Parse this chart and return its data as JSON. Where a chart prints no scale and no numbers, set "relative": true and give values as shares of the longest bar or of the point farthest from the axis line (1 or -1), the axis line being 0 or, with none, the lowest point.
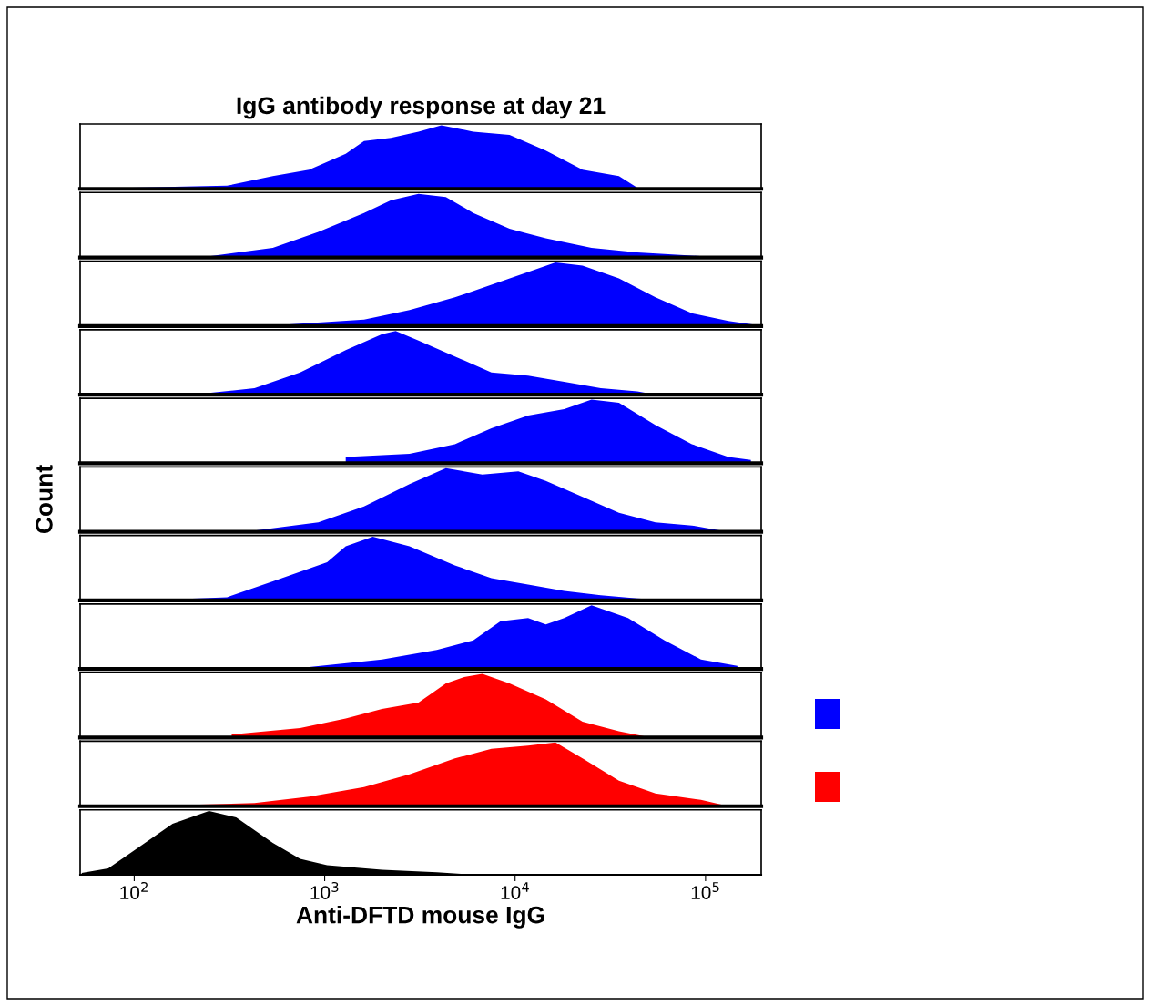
{
  "chart_data": [
    {
      "type": "area",
      "title": "IgG antibody response at day 21",
      "relative": true,
      "tick_labels": false,
      "log": "x",
      "xlim": [
        52,
        196000
      ],
      "series": [
        {
          "color": "#0000ff",
          "x": [
            97,
            307,
            534,
            829,
            1290,
            1610,
            2230,
            3110,
            4100,
            6030,
            9350,
            14500,
            22600,
            35100,
            43800,
            68000
          ],
          "values": [
            0.02,
            0.05,
            0.2,
            0.3,
            0.55,
            0.75,
            0.8,
            0.9,
            1.0,
            0.9,
            0.85,
            0.6,
            0.3,
            0.2,
            0.02,
            0.02
          ]
        }
      ]
    },
    {
      "type": "area",
      "relative": true,
      "tick_labels": false,
      "log": "x",
      "xlim": [
        52,
        196000
      ],
      "series": [
        {
          "color": "#0000ff",
          "x": [
            247,
            534,
            926,
            1610,
            2230,
            3110,
            4330,
            6030,
            9350,
            14500,
            25200,
            43800,
            84800,
            118000
          ],
          "values": [
            0.02,
            0.15,
            0.4,
            0.7,
            0.9,
            1.0,
            0.95,
            0.7,
            0.45,
            0.3,
            0.15,
            0.08,
            0.03,
            0
          ]
        }
      ]
    },
    {
      "type": "area",
      "relative": true,
      "tick_labels": false,
      "log": "x",
      "xlim": [
        52,
        196000
      ],
      "series": [
        {
          "color": "#0000ff",
          "x": [
            596,
            1610,
            2790,
            4830,
            7510,
            11700,
            16300,
            22600,
            35100,
            54600,
            84800,
            131800,
            183000
          ],
          "values": [
            0.02,
            0.1,
            0.25,
            0.45,
            0.65,
            0.85,
            1.0,
            0.95,
            0.75,
            0.45,
            0.2,
            0.08,
            0.02
          ]
        }
      ]
    },
    {
      "type": "area",
      "relative": true,
      "tick_labels": false,
      "log": "x",
      "xlim": [
        52,
        196000
      ],
      "series": [
        {
          "color": "#0000ff",
          "x": [
            233,
            428,
            743,
            1290,
            2000,
            2360,
            3110,
            4830,
            7510,
            11700,
            18100,
            28200,
            43800,
            54600
          ],
          "values": [
            0.02,
            0.1,
            0.35,
            0.7,
            0.95,
            1.0,
            0.85,
            0.6,
            0.35,
            0.3,
            0.2,
            0.1,
            0.05,
            0
          ]
        }
      ]
    },
    {
      "type": "area",
      "relative": true,
      "tick_labels": false,
      "log": "x",
      "xlim": [
        52,
        196000
      ],
      "series": [
        {
          "color": "#0000ff",
          "x": [
            1290,
            2790,
            4830,
            7510,
            11700,
            18100,
            25200,
            35100,
            54600,
            84800,
            131800,
            173000
          ],
          "values": [
            0.1,
            0.15,
            0.3,
            0.55,
            0.75,
            0.85,
            1.0,
            0.95,
            0.6,
            0.3,
            0.1,
            0.05
          ]
        }
      ]
    },
    {
      "type": "area",
      "ylabel": "Count",
      "relative": true,
      "tick_labels": false,
      "log": "x",
      "xlim": [
        52,
        196000
      ],
      "series": [
        {
          "color": "#0000ff",
          "x": [
            428,
            926,
            1610,
            2790,
            4330,
            6730,
            10400,
            14500,
            22600,
            35100,
            54600,
            84800,
            131800
          ],
          "values": [
            0.02,
            0.15,
            0.4,
            0.75,
            1.0,
            0.9,
            0.95,
            0.8,
            0.55,
            0.3,
            0.15,
            0.1,
            0
          ]
        }
      ]
    },
    {
      "type": "area",
      "relative": true,
      "tick_labels": false,
      "log": "x",
      "xlim": [
        52,
        196000
      ],
      "series": [
        {
          "color": "#0000ff",
          "x": [
            142,
            307,
            534,
            1030,
            1290,
            1790,
            2790,
            4830,
            7510,
            11700,
            18100,
            28200,
            43800,
            68000
          ],
          "values": [
            0.01,
            0.05,
            0.3,
            0.6,
            0.85,
            1.0,
            0.85,
            0.55,
            0.35,
            0.25,
            0.15,
            0.08,
            0.03,
            0
          ]
        }
      ]
    },
    {
      "type": "area",
      "relative": true,
      "tick_labels": false,
      "log": "x",
      "xlim": [
        52,
        196000
      ],
      "series": [
        {
          "color": "#0000ff",
          "x": [
            829,
            2000,
            3880,
            6030,
            8380,
            11700,
            14500,
            18100,
            25200,
            39200,
            60900,
            94600,
            147000
          ],
          "values": [
            0.03,
            0.15,
            0.3,
            0.45,
            0.75,
            0.8,
            0.7,
            0.8,
            1.0,
            0.8,
            0.45,
            0.15,
            0.05
          ]
        }
      ]
    },
    {
      "type": "area",
      "relative": true,
      "tick_labels": false,
      "log": "x",
      "xlim": [
        52,
        196000
      ],
      "series": [
        {
          "color": "#ff0000",
          "x": [
            325,
            743,
            1290,
            2000,
            3110,
            4330,
            5400,
            6730,
            9350,
            14500,
            22600,
            35100,
            51700
          ],
          "values": [
            0.05,
            0.15,
            0.3,
            0.45,
            0.55,
            0.85,
            0.95,
            1.0,
            0.85,
            0.6,
            0.25,
            0.1,
            0
          ]
        }
      ]
    },
    {
      "type": "area",
      "relative": true,
      "tick_labels": false,
      "log": "x",
      "xlim": [
        52,
        196000
      ],
      "series": [
        {
          "color": "#ff0000",
          "x": [
            198,
            428,
            829,
            1610,
            2790,
            4830,
            7510,
            11700,
            16300,
            22600,
            35100,
            54600,
            94600,
            131800
          ],
          "values": [
            0.02,
            0.05,
            0.15,
            0.3,
            0.5,
            0.75,
            0.9,
            0.95,
            1.0,
            0.75,
            0.4,
            0.2,
            0.1,
            0
          ]
        }
      ]
    },
    {
      "type": "area",
      "xlabel": "Anti-DFTD mouse IgG",
      "relative": true,
      "tick_labels": "x",
      "log": "x",
      "xlim": [
        52,
        196000
      ],
      "xticks": [
        {
          "value": 100,
          "label": "10$^{2}$"
        },
        {
          "value": 1000,
          "label": "10$^{3}$"
        },
        {
          "value": 10000,
          "label": "10$^{4}$"
        },
        {
          "value": 100000,
          "label": "10$^{5}$"
        }
      ],
      "series": [
        {
          "color": "#000000",
          "x": [
            53,
            73,
            102,
            159,
            247,
            343,
            534,
            743,
            1030,
            2000,
            3880,
            6030
          ],
          "values": [
            0.03,
            0.1,
            0.4,
            0.8,
            1.0,
            0.9,
            0.5,
            0.25,
            0.15,
            0.08,
            0.04,
            0
          ]
        }
      ]
    }
  ]
}
